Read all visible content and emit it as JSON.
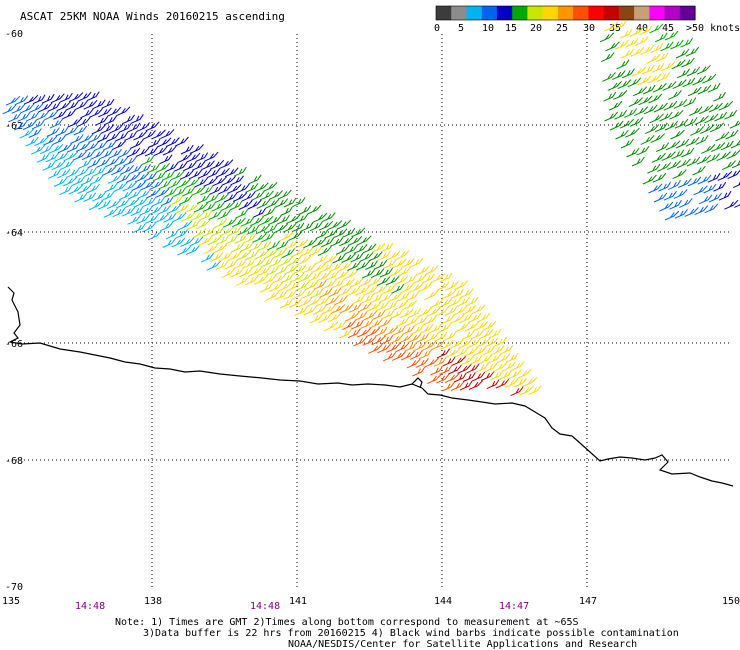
{
  "title": "ASCAT 25KM NOAA Winds 20160215 ascending",
  "legend": {
    "colors": [
      "#3c3c3c",
      "#8c8c8c",
      "#00b4f0",
      "#0064f0",
      "#0000c8",
      "#00aa00",
      "#c8e600",
      "#ffd700",
      "#ff9600",
      "#ff5000",
      "#ff0000",
      "#c80000",
      "#8b4513",
      "#c8a078",
      "#ff00ff",
      "#b400c8",
      "#640096"
    ],
    "labels": [
      "0",
      "5",
      "10",
      "15",
      "20",
      "25",
      "30",
      "35",
      "40",
      "45",
      ">50 knots"
    ]
  },
  "map": {
    "lon_ticks": [
      "135",
      "138",
      "141",
      "144",
      "147",
      "150"
    ],
    "lat_ticks": [
      "-60",
      "-62",
      "-64",
      "-66",
      "-68",
      "-70"
    ],
    "time_labels": [
      "14:48",
      "14:48",
      "14:47"
    ]
  },
  "notes": [
    "Note: 1) Times are GMT 2)Times along bottom correspond to measurement at ~65S",
    "3)Data buffer is 22 hrs from 20160215 4) Black wind barbs indicate possible contamination",
    "NOAA/NESDIS/Center for Satellite Applications and Research"
  ]
}
